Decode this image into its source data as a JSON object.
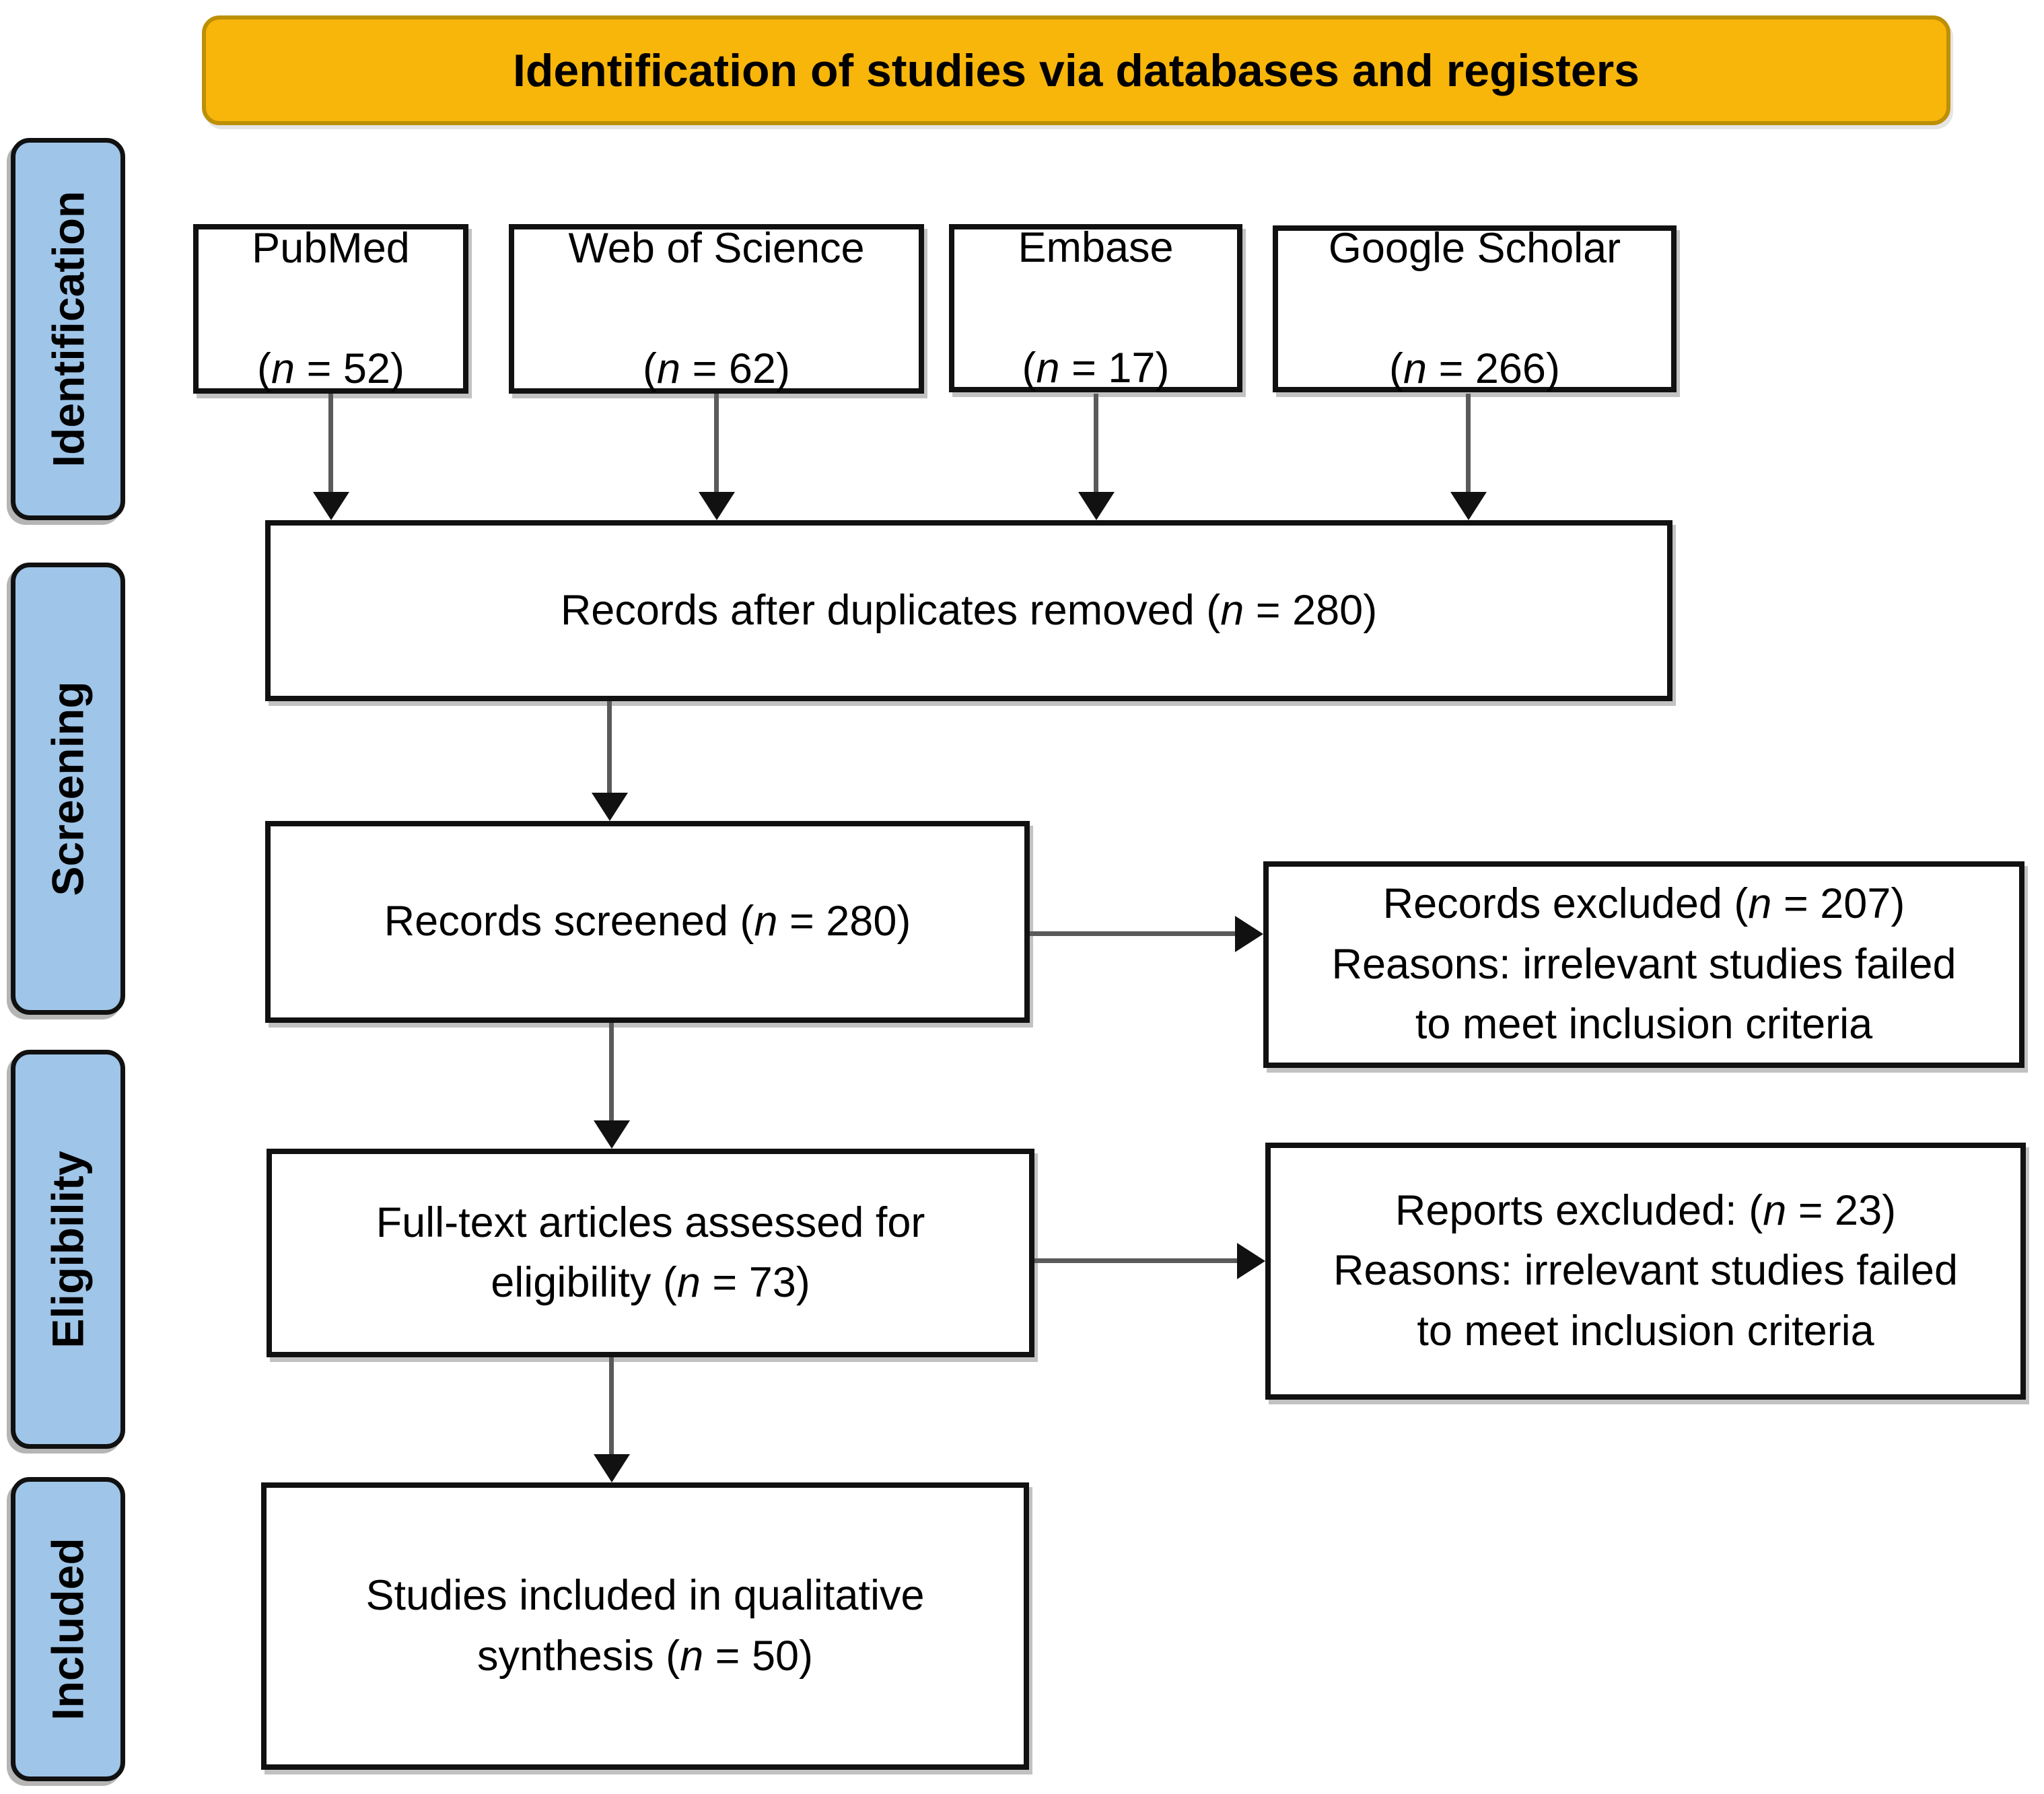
{
  "colors": {
    "banner_fill": "#F8B50A",
    "banner_border": "#BD8F06",
    "stage_fill": "#9FC5E8",
    "box_border": "#111111"
  },
  "banner": {
    "title": "Identification of studies via databases and registers"
  },
  "stages": [
    {
      "label": "Identification"
    },
    {
      "label": "Screening"
    },
    {
      "label": "Eligibility"
    },
    {
      "label": "Included"
    }
  ],
  "sources": [
    {
      "name": "PubMed",
      "count": "(n = 52)"
    },
    {
      "name": "Web of Science",
      "count": "(n = 62)"
    },
    {
      "name": "Embase",
      "count": "(n = 17)"
    },
    {
      "name": "Google Scholar",
      "count": "(n = 266)"
    }
  ],
  "flow": {
    "duplicates_removed": "Records after duplicates removed (n = 280)",
    "records_screened": "Records screened (n = 280)",
    "records_excluded": "Records excluded (n = 207)\nReasons: irrelevant studies failed\nto meet inclusion criteria",
    "fulltext_assessed": "Full-text articles assessed for\neligibility (n = 73)",
    "reports_excluded": "Reports excluded: (n = 23)\nReasons: irrelevant studies failed\nto meet inclusion criteria",
    "studies_included": "Studies included in qualitative\nsynthesis (n = 50)"
  },
  "chart_data": {
    "type": "table",
    "title": "PRISMA flow diagram",
    "records_identified": {
      "PubMed": 52,
      "Web of Science": 62,
      "Embase": 17,
      "Google Scholar": 266
    },
    "after_duplicates_removed": 280,
    "records_screened": 280,
    "records_excluded": 207,
    "fulltext_assessed": 73,
    "reports_excluded": 23,
    "studies_included_qualitative_synthesis": 50
  }
}
